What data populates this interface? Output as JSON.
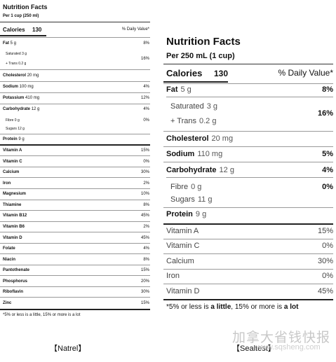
{
  "left": {
    "title": "Nutrition Facts",
    "serving": "Per 1 cup (250 ml)",
    "calories_label": "Calories",
    "calories_value": "130",
    "dv_header": "% Daily Value*",
    "fat": {
      "label": "Fat",
      "amount": "5 g",
      "pct": "8%"
    },
    "saturated": {
      "label": "Saturated",
      "amount": "3 g"
    },
    "trans": {
      "label": "+ Trans",
      "amount": "0.2 g",
      "pct": "16%"
    },
    "cholesterol": {
      "label": "Cholesterol",
      "amount": "20 mg"
    },
    "sodium": {
      "label": "Sodium",
      "amount": "100 mg",
      "pct": "4%"
    },
    "potassium": {
      "label": "Potassium",
      "amount": "410 mg",
      "pct": "12%"
    },
    "carbohydrate": {
      "label": "Carbohydrate",
      "amount": "12 g",
      "pct": "4%"
    },
    "fibre": {
      "label": "Fibre",
      "amount": "0 g",
      "pct": "0%"
    },
    "sugars": {
      "label": "Sugars",
      "amount": "12 g"
    },
    "protein": {
      "label": "Protein",
      "amount": "9 g"
    },
    "vitamins": [
      {
        "label": "Vitamin A",
        "pct": "15%"
      },
      {
        "label": "Vitamin C",
        "pct": "0%"
      },
      {
        "label": "Calcium",
        "pct": "30%"
      },
      {
        "label": "Iron",
        "pct": "2%"
      },
      {
        "label": "Magnesium",
        "pct": "10%"
      },
      {
        "label": "Thiamine",
        "pct": "8%"
      },
      {
        "label": "Vitamin B12",
        "pct": "45%"
      },
      {
        "label": "Vitamin B6",
        "pct": "2%"
      },
      {
        "label": "Vitamin D",
        "pct": "45%"
      },
      {
        "label": "Folate",
        "pct": "4%"
      },
      {
        "label": "Niacin",
        "pct": "8%"
      },
      {
        "label": "Pantothenate",
        "pct": "15%"
      },
      {
        "label": "Phosphorus",
        "pct": "20%"
      },
      {
        "label": "Riboflavin",
        "pct": "30%"
      },
      {
        "label": "Zinc",
        "pct": "15%"
      }
    ],
    "footnote": "*5% or less is a little, 15% or more is a lot",
    "caption": "【Natrel】"
  },
  "right": {
    "title": "Nutrition Facts",
    "serving": "Per 250 mL (1 cup)",
    "calories_label": "Calories",
    "calories_value": "130",
    "dv_header": "% Daily Value*",
    "fat": {
      "label": "Fat",
      "amount": "5 g",
      "pct": "8%"
    },
    "saturated": {
      "label": "Saturated",
      "amount": "3 g"
    },
    "trans": {
      "label": "+ Trans",
      "amount": "0.2 g",
      "pct": "16%"
    },
    "cholesterol": {
      "label": "Cholesterol",
      "amount": "20 mg"
    },
    "sodium": {
      "label": "Sodium",
      "amount": "110 mg",
      "pct": "5%"
    },
    "carbohydrate": {
      "label": "Carbohydrate",
      "amount": "12 g",
      "pct": "4%"
    },
    "fibre": {
      "label": "Fibre",
      "amount": "0 g",
      "pct": "0%"
    },
    "sugars": {
      "label": "Sugars",
      "amount": "11 g"
    },
    "protein": {
      "label": "Protein",
      "amount": "9 g"
    },
    "vitamins": [
      {
        "label": "Vitamin A",
        "pct": "15%"
      },
      {
        "label": "Vitamin C",
        "pct": "0%"
      },
      {
        "label": "Calcium",
        "pct": "30%"
      },
      {
        "label": "Iron",
        "pct": "0%"
      },
      {
        "label": "Vitamin D",
        "pct": "45%"
      }
    ],
    "footnote_a": "*5% or less is ",
    "footnote_b": "a little",
    "footnote_c": ", 15% or more is ",
    "footnote_d": "a lot",
    "caption": "【Sealtest】"
  },
  "watermark": {
    "text": "加拿大省钱快报",
    "url": "www.sqsheng.com"
  }
}
